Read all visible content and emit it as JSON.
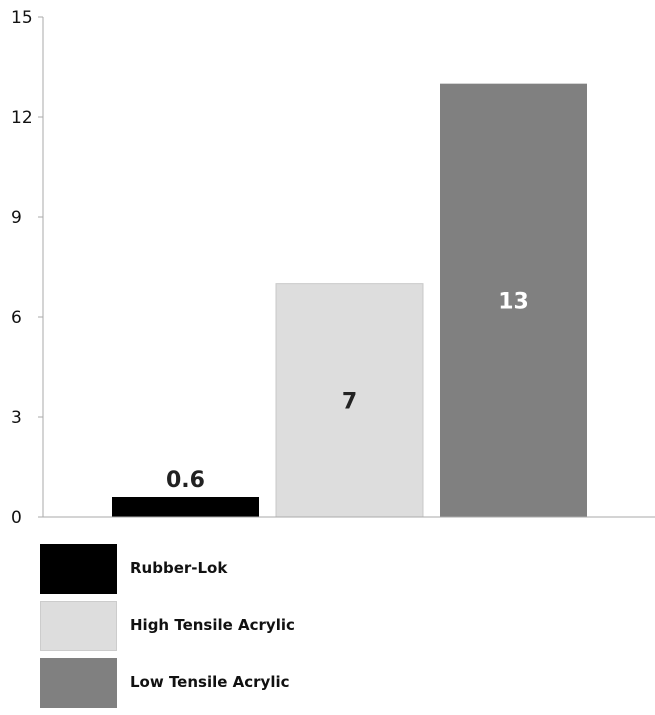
{
  "chart_data": {
    "type": "bar",
    "categories": [
      "Rubber-Lok",
      "High Tensile Acrylic",
      "Low Tensile Acrylic"
    ],
    "values": [
      0.6,
      7,
      13
    ],
    "data_labels": [
      "0.6",
      "7",
      "13"
    ],
    "colors": [
      "#000000",
      "#dddddd",
      "#808080"
    ],
    "label_colors": [
      "#222222",
      "#222222",
      "#ffffff"
    ],
    "ylim": [
      0,
      15
    ],
    "yticks": [
      0,
      3,
      6,
      9,
      12,
      15
    ],
    "grid": false,
    "legend_position": "bottom",
    "title": "",
    "xlabel": "",
    "ylabel": ""
  },
  "legend": {
    "items": [
      {
        "label": "Rubber-Lok",
        "color": "#000000"
      },
      {
        "label": "High Tensile Acrylic",
        "color": "#dddddd"
      },
      {
        "label": "Low Tensile Acrylic",
        "color": "#808080"
      }
    ]
  }
}
